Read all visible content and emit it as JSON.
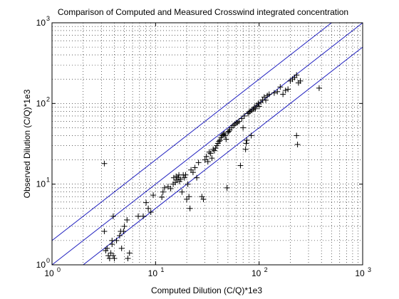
{
  "chart_data": {
    "type": "scatter",
    "title": "Comparison of Computed and Measured Crosswind integrated concentration",
    "xlabel": "Computed Dilution (C/Q)*1e3",
    "ylabel": "Observed Dilution (C/Q)*1e3",
    "xscale": "log",
    "yscale": "log",
    "xlim": [
      1,
      1000
    ],
    "ylim": [
      1,
      1000
    ],
    "xticks": [
      {
        "value": 1,
        "base": "10",
        "exp": "0"
      },
      {
        "value": 10,
        "base": "10",
        "exp": "1"
      },
      {
        "value": 100,
        "base": "10",
        "exp": "2"
      },
      {
        "value": 1000,
        "base": "10",
        "exp": "3"
      }
    ],
    "yticks": [
      {
        "value": 1,
        "base": "10",
        "exp": "0"
      },
      {
        "value": 10,
        "base": "10",
        "exp": "1"
      },
      {
        "value": 100,
        "base": "10",
        "exp": "2"
      },
      {
        "value": 1000,
        "base": "10",
        "exp": "3"
      }
    ],
    "grid": true,
    "marker": "+",
    "marker_color": "#000000",
    "reference_lines": [
      {
        "ratio": 2,
        "color": "#1f1fbf"
      },
      {
        "ratio": 1,
        "color": "#1f1fbf"
      },
      {
        "ratio": 0.5,
        "color": "#1f1fbf"
      }
    ],
    "points": [
      [
        3.2,
        18
      ],
      [
        3.2,
        2.6
      ],
      [
        3.3,
        1.5
      ],
      [
        3.4,
        1.6
      ],
      [
        3.5,
        1.3
      ],
      [
        3.6,
        1.2
      ],
      [
        3.7,
        1.4
      ],
      [
        3.8,
        1.8
      ],
      [
        3.9,
        1.3
      ],
      [
        4.0,
        1.2
      ],
      [
        3.9,
        4.0
      ],
      [
        3.8,
        2.0
      ],
      [
        4.2,
        2.0
      ],
      [
        4.5,
        2.3
      ],
      [
        4.6,
        2.6
      ],
      [
        4.7,
        1.6
      ],
      [
        5.0,
        3.0
      ],
      [
        5.3,
        3.6
      ],
      [
        5.6,
        1.4
      ],
      [
        5.4,
        1.2
      ],
      [
        4.9,
        2.6
      ],
      [
        6.8,
        4.0
      ],
      [
        7.6,
        4.0
      ],
      [
        8.1,
        5.9
      ],
      [
        8.5,
        5.0
      ],
      [
        9.0,
        4.5
      ],
      [
        9.5,
        7.3
      ],
      [
        11.5,
        6.9
      ],
      [
        11.8,
        8.0
      ],
      [
        12.2,
        9.0
      ],
      [
        13.2,
        9.3
      ],
      [
        14.0,
        8.8
      ],
      [
        14.8,
        10.0
      ],
      [
        15.0,
        12.0
      ],
      [
        15.5,
        10.5
      ],
      [
        15.8,
        12.5
      ],
      [
        16.0,
        11.3
      ],
      [
        16.5,
        12.0
      ],
      [
        16.8,
        13.0
      ],
      [
        17.0,
        10.8
      ],
      [
        17.5,
        11.5
      ],
      [
        18.0,
        8.0
      ],
      [
        18.5,
        13.0
      ],
      [
        19.0,
        12.0
      ],
      [
        19.5,
        13.0
      ],
      [
        20.0,
        6.5
      ],
      [
        20.5,
        10.0
      ],
      [
        21.0,
        7.0
      ],
      [
        21.5,
        5.0
      ],
      [
        22.0,
        15.0
      ],
      [
        23.0,
        14.0
      ],
      [
        24.0,
        16.0
      ],
      [
        25.0,
        12.0
      ],
      [
        26.0,
        18.5
      ],
      [
        28.0,
        7.0
      ],
      [
        29.0,
        6.5
      ],
      [
        30.0,
        20.0
      ],
      [
        31.0,
        22.0
      ],
      [
        32.0,
        19.0
      ],
      [
        33.0,
        25.0
      ],
      [
        34.0,
        24.0
      ],
      [
        35.0,
        21.0
      ],
      [
        36.0,
        27.0
      ],
      [
        37.0,
        26.0
      ],
      [
        38.0,
        28.0
      ],
      [
        39.0,
        30.0
      ],
      [
        40.0,
        32.0
      ],
      [
        41.0,
        34.0
      ],
      [
        42.0,
        35.0
      ],
      [
        43.0,
        38.0
      ],
      [
        44.0,
        40.0
      ],
      [
        45.0,
        41.0
      ],
      [
        46.0,
        42.0
      ],
      [
        47.0,
        40.0
      ],
      [
        48.0,
        36.0
      ],
      [
        49.0,
        9.0
      ],
      [
        50.0,
        44.0
      ],
      [
        51.0,
        45.0
      ],
      [
        52.0,
        47.0
      ],
      [
        54.0,
        50.0
      ],
      [
        56.0,
        53.0
      ],
      [
        58.0,
        55.0
      ],
      [
        60.0,
        57.0
      ],
      [
        62.0,
        58.0
      ],
      [
        64.0,
        60.0
      ],
      [
        66.0,
        17.0
      ],
      [
        68.0,
        65.0
      ],
      [
        70.0,
        50.0
      ],
      [
        72.0,
        70.0
      ],
      [
        74.0,
        27.0
      ],
      [
        75.0,
        32.0
      ],
      [
        76.0,
        35.0
      ],
      [
        78.0,
        75.0
      ],
      [
        80.0,
        78.0
      ],
      [
        82.0,
        80.0
      ],
      [
        84.0,
        40.0
      ],
      [
        85.0,
        82.0
      ],
      [
        88.0,
        85.0
      ],
      [
        90.0,
        90.0
      ],
      [
        92.0,
        86.0
      ],
      [
        95.0,
        95.0
      ],
      [
        98.0,
        100.0
      ],
      [
        100.0,
        92.0
      ],
      [
        104.0,
        104.0
      ],
      [
        108.0,
        110.0
      ],
      [
        112.0,
        120.0
      ],
      [
        116.0,
        110.0
      ],
      [
        120.0,
        125.0
      ],
      [
        125.0,
        130.0
      ],
      [
        140.0,
        135.0
      ],
      [
        150.0,
        140.0
      ],
      [
        160.0,
        160.0
      ],
      [
        170.0,
        130.0
      ],
      [
        180.0,
        145.0
      ],
      [
        190.0,
        150.0
      ],
      [
        200.0,
        190.0
      ],
      [
        210.0,
        200.0
      ],
      [
        220.0,
        210.0
      ],
      [
        230.0,
        225.0
      ],
      [
        240.0,
        180.0
      ],
      [
        250.0,
        190.0
      ],
      [
        230.0,
        40.0
      ],
      [
        235.0,
        31.0
      ],
      [
        380.0,
        155.0
      ]
    ]
  }
}
